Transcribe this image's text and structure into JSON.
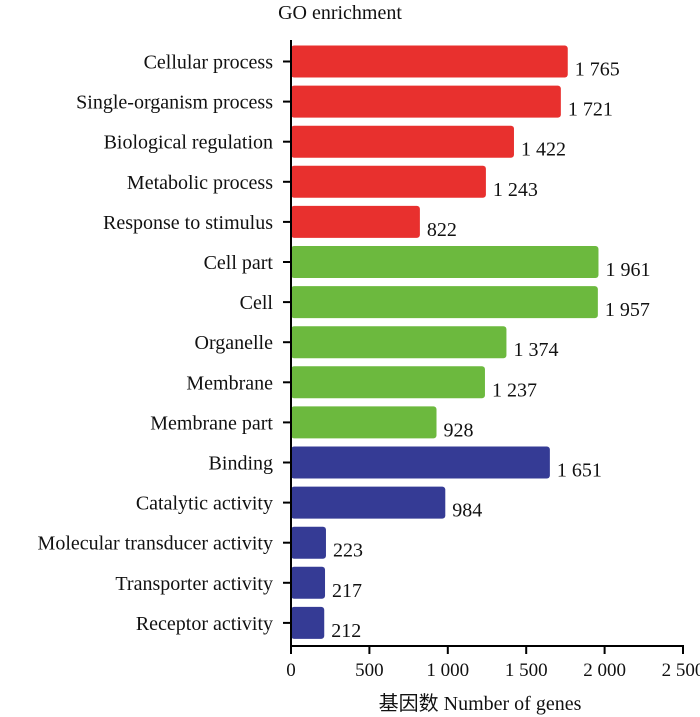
{
  "chart_data": {
    "type": "bar",
    "orientation": "horizontal",
    "title": "GO enrichment",
    "xlabel": "基因数  Number of genes",
    "ylabel": "",
    "xlim": [
      0,
      2500
    ],
    "xticks": [
      0,
      500,
      1000,
      1500,
      2000,
      2500
    ],
    "xtick_labels": [
      "0",
      "500",
      "1 000",
      "1 500",
      "2 000",
      "2 500"
    ],
    "grid": false,
    "categories": [
      "Cellular process",
      "Single-organism process",
      "Biological regulation",
      "Metabolic process",
      "Response to stimulus",
      "Cell part",
      "Cell",
      "Organelle",
      "Membrane",
      "Membrane part",
      "Binding",
      "Catalytic activity",
      "Molecular transducer activity",
      "Transporter activity",
      "Receptor activity"
    ],
    "values": [
      1765,
      1721,
      1422,
      1243,
      822,
      1961,
      1957,
      1374,
      1237,
      928,
      1651,
      984,
      223,
      217,
      212
    ],
    "value_labels": [
      "1 765",
      "1 721",
      "1 422",
      "1 243",
      "822",
      "1 961",
      "1 957",
      "1 374",
      "1 237",
      "928",
      "1 651",
      "984",
      "223",
      "217",
      "212"
    ],
    "bar_colors": [
      "#e8302e",
      "#e8302e",
      "#e8302e",
      "#e8302e",
      "#e8302e",
      "#6cb93e",
      "#6cb93e",
      "#6cb93e",
      "#6cb93e",
      "#6cb93e",
      "#353b95",
      "#353b95",
      "#353b95",
      "#353b95",
      "#353b95"
    ]
  }
}
